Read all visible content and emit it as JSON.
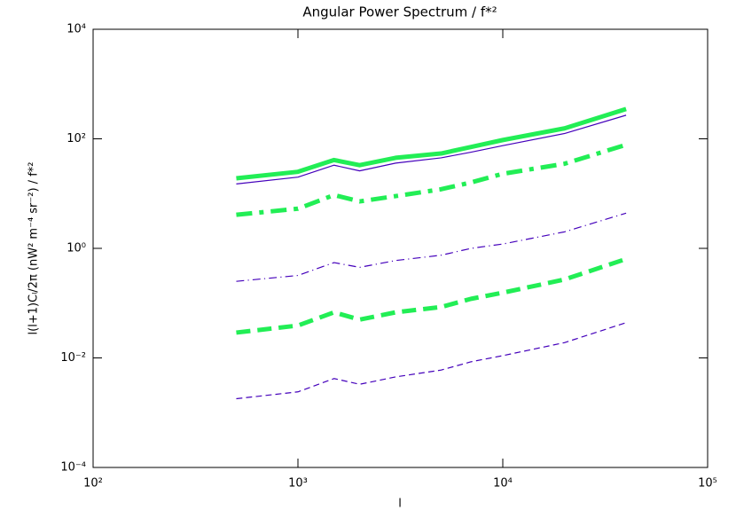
{
  "chart_data": {
    "type": "line",
    "title": "Angular Power Spectrum / f*²",
    "x_label": "l",
    "y_label": "l(l+1)Cₗ/2π (nW² m⁻⁴ sr⁻²) / f*²",
    "xlog": true,
    "ylog": true,
    "xlim": [
      100,
      100000
    ],
    "ylim": [
      0.0001,
      10000
    ],
    "xticks": [
      {
        "value": 100,
        "label": "10²"
      },
      {
        "value": 1000,
        "label": "10³"
      },
      {
        "value": 10000,
        "label": "10⁴"
      },
      {
        "value": 100000,
        "label": "10⁵"
      }
    ],
    "yticks": [
      {
        "value": 0.0001,
        "label": "10⁻⁴"
      },
      {
        "value": 0.01,
        "label": "10⁻²"
      },
      {
        "value": 1,
        "label": "10⁰"
      },
      {
        "value": 100,
        "label": "10²"
      },
      {
        "value": 10000,
        "label": "10⁴"
      }
    ],
    "x": [
      500,
      1000,
      1500,
      2000,
      3000,
      5000,
      7000,
      10000,
      20000,
      40000
    ],
    "series": [
      {
        "color": "#22ee55",
        "linewidth": 5,
        "dash": "solid",
        "values": [
          19,
          25,
          41,
          33,
          45,
          54,
          71,
          95,
          155,
          350
        ]
      },
      {
        "color": "#4400bb",
        "linewidth": 1.2,
        "dash": "solid",
        "values": [
          15,
          20,
          33,
          26,
          36,
          45,
          57,
          75,
          125,
          270
        ]
      },
      {
        "color": "#22ee55",
        "linewidth": 5,
        "dash": "dashdot",
        "values": [
          4.1,
          5.3,
          9.4,
          7.2,
          9,
          12,
          16,
          23,
          35,
          78
        ]
      },
      {
        "color": "#4400bb",
        "linewidth": 1.2,
        "dash": "dashdot",
        "values": [
          0.25,
          0.32,
          0.55,
          0.45,
          0.6,
          0.75,
          1.0,
          1.2,
          2.0,
          4.4
        ]
      },
      {
        "color": "#22ee55",
        "linewidth": 5,
        "dash": "dashed",
        "values": [
          0.029,
          0.039,
          0.068,
          0.05,
          0.068,
          0.085,
          0.12,
          0.155,
          0.27,
          0.64
        ]
      },
      {
        "color": "#4400bb",
        "linewidth": 1.2,
        "dash": "dashed",
        "values": [
          0.0018,
          0.0024,
          0.0042,
          0.0033,
          0.0045,
          0.006,
          0.0085,
          0.011,
          0.019,
          0.044
        ]
      }
    ]
  }
}
